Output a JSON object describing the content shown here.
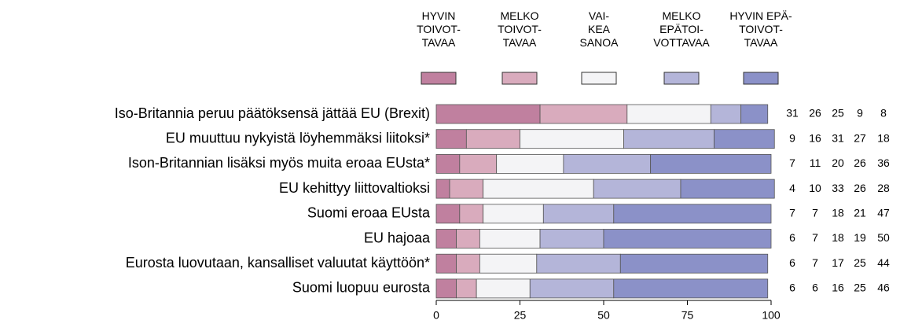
{
  "chart_data": {
    "type": "stacked_bar_horizontal",
    "categories": [
      "Iso-Britannia peruu päätöksensä jättää EU (Brexit)",
      "EU muuttuu nykyistä löyhemmäksi liitoksi*",
      "Ison-Britannian lisäksi myös muita eroaa EUsta*",
      "EU kehittyy liittovaltioksi",
      "Suomi eroaa EUsta",
      "EU hajoaa",
      "Eurosta luovutaan, kansalliset valuutat käyttöön*",
      "Suomi luopuu eurosta"
    ],
    "series": [
      {
        "name": "HYVIN\nTOIVOT-\nTAVAA",
        "color": "#c0809f",
        "values": [
          31,
          9,
          7,
          4,
          7,
          6,
          6,
          6
        ]
      },
      {
        "name": "MELKO\nTOIVOT-\nTAVAA",
        "color": "#d9abbd",
        "values": [
          26,
          16,
          11,
          10,
          7,
          7,
          7,
          6
        ]
      },
      {
        "name": "VAI-\nKEA\nSANOA",
        "color": "#f4f4f6",
        "values": [
          25,
          31,
          20,
          33,
          18,
          18,
          17,
          16
        ]
      },
      {
        "name": "MELKO\nEPÄTOI-\nVOTTAVAA",
        "color": "#b4b5d9",
        "values": [
          9,
          27,
          26,
          26,
          21,
          19,
          25,
          25
        ]
      },
      {
        "name": "HYVIN EPÄ-\nTOIVOT-\nTAVAA",
        "color": "#8b91c8",
        "values": [
          8,
          18,
          36,
          28,
          47,
          50,
          44,
          46
        ]
      }
    ],
    "xlim": [
      0,
      100
    ],
    "xticks": [
      0,
      25,
      50,
      75,
      100
    ]
  }
}
